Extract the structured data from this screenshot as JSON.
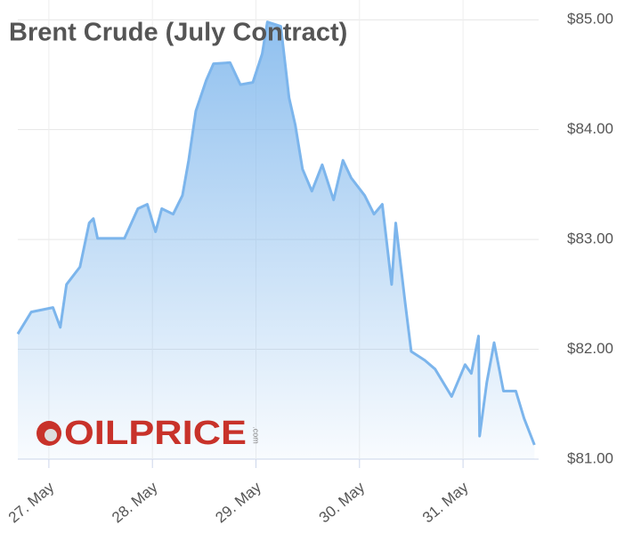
{
  "chart_data": {
    "type": "area",
    "title": "Brent Crude (July Contract)",
    "logo": "OILPRICE",
    "logo_suffix": ".com",
    "x": [
      26.7,
      26.83,
      27.04,
      27.11,
      27.17,
      27.3,
      27.39,
      27.43,
      27.47,
      27.73,
      27.86,
      27.95,
      28.03,
      28.09,
      28.2,
      28.29,
      28.35,
      28.42,
      28.52,
      28.59,
      28.75,
      28.85,
      28.97,
      29.06,
      29.11,
      29.24,
      29.32,
      29.38,
      29.45,
      29.54,
      29.64,
      29.75,
      29.84,
      29.92,
      30.05,
      30.14,
      30.22,
      30.31,
      30.35,
      30.44,
      30.5,
      30.63,
      30.73,
      30.89,
      31.02,
      31.08,
      31.15,
      31.16,
      31.23,
      31.3,
      31.39,
      31.51,
      31.59,
      31.69
    ],
    "series": [
      {
        "name": "Brent Crude",
        "color": "#7cb5ec",
        "values": [
          82.14,
          82.34,
          82.38,
          82.2,
          82.59,
          82.75,
          83.15,
          83.19,
          83.01,
          83.01,
          83.28,
          83.32,
          83.07,
          83.28,
          83.23,
          83.4,
          83.72,
          84.17,
          84.45,
          84.6,
          84.61,
          84.41,
          84.43,
          84.69,
          84.98,
          84.94,
          84.29,
          84.04,
          83.64,
          83.44,
          83.68,
          83.36,
          83.72,
          83.56,
          83.4,
          83.23,
          83.32,
          82.59,
          83.15,
          82.43,
          81.98,
          81.9,
          81.82,
          81.57,
          81.86,
          81.78,
          82.12,
          81.21,
          81.7,
          82.06,
          81.62,
          81.62,
          81.37,
          81.13
        ]
      }
    ],
    "xlim": [
      26.7,
      31.73
    ],
    "xticks": [
      {
        "value": 27,
        "label": "27. May"
      },
      {
        "value": 28,
        "label": "28. May"
      },
      {
        "value": 29,
        "label": "29. May"
      },
      {
        "value": 30,
        "label": "30. May"
      },
      {
        "value": 31,
        "label": "31. May"
      }
    ],
    "ylim": [
      81,
      85.18
    ],
    "yticks": [
      {
        "value": 81,
        "label": "$81.00"
      },
      {
        "value": 82,
        "label": "$82.00"
      },
      {
        "value": 83,
        "label": "$83.00"
      },
      {
        "value": 84,
        "label": "$84.00"
      },
      {
        "value": 85,
        "label": "$85.00"
      }
    ],
    "grid": true
  }
}
